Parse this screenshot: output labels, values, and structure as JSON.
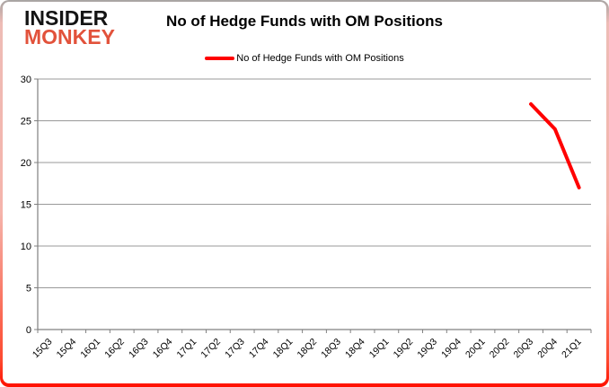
{
  "logo": {
    "line1": "INSIDER",
    "line2": "MONKEY"
  },
  "header": {
    "title": "No of Hedge Funds with OM Positions"
  },
  "legend": {
    "label": "No of Hedge Funds with OM Positions"
  },
  "chart_data": {
    "type": "line",
    "title": "No of Hedge Funds with OM Positions",
    "xlabel": "",
    "ylabel": "",
    "ylim": [
      0,
      30
    ],
    "ytick": 5,
    "grid": true,
    "legend_position": "top",
    "categories": [
      "15Q3",
      "15Q4",
      "16Q1",
      "16Q2",
      "16Q3",
      "16Q4",
      "17Q1",
      "17Q2",
      "17Q3",
      "17Q4",
      "18Q1",
      "18Q2",
      "18Q3",
      "18Q4",
      "19Q1",
      "19Q2",
      "19Q3",
      "19Q4",
      "20Q1",
      "20Q2",
      "20Q3",
      "20Q4",
      "21Q1"
    ],
    "series": [
      {
        "name": "No of Hedge Funds with OM Positions",
        "color": "#ff0000",
        "values": [
          null,
          null,
          null,
          null,
          null,
          null,
          null,
          null,
          null,
          null,
          null,
          null,
          null,
          null,
          null,
          null,
          null,
          null,
          null,
          null,
          27,
          24,
          17
        ]
      }
    ]
  },
  "colors": {
    "accent_red": "#ff0000",
    "logo_red": "#e2523b",
    "grid_gray": "#999999",
    "axis_gray": "#808080",
    "text_black": "#000000",
    "frame_bottom_red": "#ff1000"
  }
}
